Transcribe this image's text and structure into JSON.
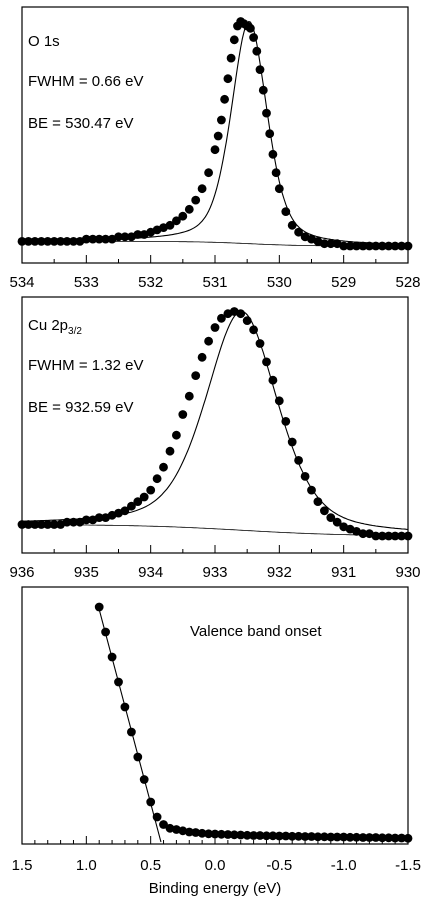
{
  "chart_data": [
    {
      "id": "p1",
      "type": "scatter",
      "xlim": [
        534,
        528
      ],
      "ylim": [
        -0.05,
        1.05
      ],
      "xticks": [
        "534",
        "533",
        "532",
        "531",
        "530",
        "529",
        "528"
      ],
      "annotations": [
        "O 1s",
        "FWHM = 0.66 eV",
        "BE = 530.47 eV"
      ],
      "peak": {
        "center": 530.47,
        "fwhm": 0.66,
        "bg_low": 0.02,
        "bg_high": 0.04
      },
      "x": [
        534.0,
        533.9,
        533.8,
        533.7,
        533.6,
        533.5,
        533.4,
        533.3,
        533.2,
        533.1,
        533.0,
        532.9,
        532.8,
        532.7,
        532.6,
        532.5,
        532.4,
        532.3,
        532.2,
        532.1,
        532.0,
        531.9,
        531.8,
        531.7,
        531.6,
        531.5,
        531.4,
        531.3,
        531.2,
        531.1,
        531.0,
        530.95,
        530.9,
        530.85,
        530.8,
        530.75,
        530.7,
        530.65,
        530.6,
        530.55,
        530.5,
        530.45,
        530.4,
        530.35,
        530.3,
        530.25,
        530.2,
        530.15,
        530.1,
        530.05,
        530.0,
        529.9,
        529.8,
        529.7,
        529.6,
        529.5,
        529.4,
        529.3,
        529.2,
        529.1,
        529.0,
        528.9,
        528.8,
        528.7,
        528.6,
        528.5,
        528.4,
        528.3,
        528.2,
        528.1,
        528.0
      ],
      "y": [
        0.04,
        0.04,
        0.04,
        0.04,
        0.04,
        0.04,
        0.04,
        0.04,
        0.04,
        0.04,
        0.05,
        0.05,
        0.05,
        0.05,
        0.05,
        0.06,
        0.06,
        0.06,
        0.07,
        0.07,
        0.08,
        0.09,
        0.1,
        0.11,
        0.13,
        0.15,
        0.18,
        0.22,
        0.27,
        0.34,
        0.44,
        0.5,
        0.57,
        0.66,
        0.75,
        0.84,
        0.92,
        0.98,
        1.0,
        0.99,
        0.98,
        0.97,
        0.93,
        0.87,
        0.79,
        0.7,
        0.6,
        0.51,
        0.42,
        0.34,
        0.27,
        0.17,
        0.11,
        0.08,
        0.06,
        0.05,
        0.04,
        0.03,
        0.03,
        0.03,
        0.02,
        0.02,
        0.02,
        0.02,
        0.02,
        0.02,
        0.02,
        0.02,
        0.02,
        0.02,
        0.02
      ]
    },
    {
      "id": "p2",
      "type": "scatter",
      "xlim": [
        936,
        930
      ],
      "ylim": [
        -0.05,
        1.05
      ],
      "xticks": [
        "936",
        "935",
        "934",
        "933",
        "932",
        "931",
        "930"
      ],
      "annotations": [
        "Cu 2p",
        "3/2",
        "FWHM = 1.32 eV",
        "BE = 932.59 eV"
      ],
      "peak": {
        "center": 932.59,
        "fwhm": 1.32,
        "bg_low": 0.02,
        "bg_high": 0.07
      },
      "x": [
        936.0,
        935.9,
        935.8,
        935.7,
        935.6,
        935.5,
        935.4,
        935.3,
        935.2,
        935.1,
        935.0,
        934.9,
        934.8,
        934.7,
        934.6,
        934.5,
        934.4,
        934.3,
        934.2,
        934.1,
        934.0,
        933.9,
        933.8,
        933.7,
        933.6,
        933.5,
        933.4,
        933.3,
        933.2,
        933.1,
        933.0,
        932.9,
        932.8,
        932.7,
        932.6,
        932.5,
        932.4,
        932.3,
        932.2,
        932.1,
        932.0,
        931.9,
        931.8,
        931.7,
        931.6,
        931.5,
        931.4,
        931.3,
        931.2,
        931.1,
        931.0,
        930.9,
        930.8,
        930.7,
        930.6,
        930.5,
        930.4,
        930.3,
        930.2,
        930.1,
        930.0
      ],
      "y": [
        0.07,
        0.07,
        0.07,
        0.07,
        0.07,
        0.07,
        0.07,
        0.08,
        0.08,
        0.08,
        0.09,
        0.09,
        0.1,
        0.1,
        0.11,
        0.12,
        0.13,
        0.15,
        0.17,
        0.19,
        0.22,
        0.27,
        0.32,
        0.39,
        0.46,
        0.55,
        0.63,
        0.72,
        0.8,
        0.87,
        0.93,
        0.97,
        0.99,
        1.0,
        0.99,
        0.96,
        0.92,
        0.86,
        0.78,
        0.7,
        0.61,
        0.52,
        0.43,
        0.35,
        0.28,
        0.22,
        0.17,
        0.13,
        0.1,
        0.08,
        0.06,
        0.05,
        0.04,
        0.03,
        0.03,
        0.02,
        0.02,
        0.02,
        0.02,
        0.02,
        0.02
      ]
    },
    {
      "id": "p3",
      "type": "scatter",
      "xlim": [
        1.5,
        -1.5
      ],
      "ylim": [
        0,
        1
      ],
      "xticks": [
        "1.5",
        "1.0",
        "0.5",
        "0.0",
        "-0.5",
        "-1.0",
        "-1.5"
      ],
      "xlabel": "Binding energy (eV)",
      "annotations": [
        "Valence band onset"
      ],
      "fit_line": {
        "x": [
          0.9,
          0.42
        ],
        "y": [
          0.93,
          0.0
        ]
      },
      "x": [
        0.9,
        0.85,
        0.8,
        0.75,
        0.7,
        0.65,
        0.6,
        0.55,
        0.5,
        0.45,
        0.4,
        0.35,
        0.3,
        0.25,
        0.2,
        0.15,
        0.1,
        0.05,
        0.0,
        -0.05,
        -0.1,
        -0.15,
        -0.2,
        -0.25,
        -0.3,
        -0.35,
        -0.4,
        -0.45,
        -0.5,
        -0.55,
        -0.6,
        -0.65,
        -0.7,
        -0.75,
        -0.8,
        -0.85,
        -0.9,
        -0.95,
        -1.0,
        -1.05,
        -1.1,
        -1.15,
        -1.2,
        -1.25,
        -1.3,
        -1.35,
        -1.4,
        -1.45,
        -1.5
      ],
      "y": [
        0.94,
        0.84,
        0.74,
        0.64,
        0.54,
        0.44,
        0.34,
        0.25,
        0.16,
        0.1,
        0.07,
        0.055,
        0.05,
        0.045,
        0.04,
        0.038,
        0.035,
        0.033,
        0.032,
        0.031,
        0.03,
        0.029,
        0.028,
        0.027,
        0.026,
        0.026,
        0.025,
        0.025,
        0.024,
        0.024,
        0.023,
        0.023,
        0.022,
        0.022,
        0.021,
        0.021,
        0.02,
        0.02,
        0.02,
        0.019,
        0.019,
        0.018,
        0.018,
        0.018,
        0.017,
        0.017,
        0.016,
        0.016,
        0.015
      ]
    }
  ]
}
